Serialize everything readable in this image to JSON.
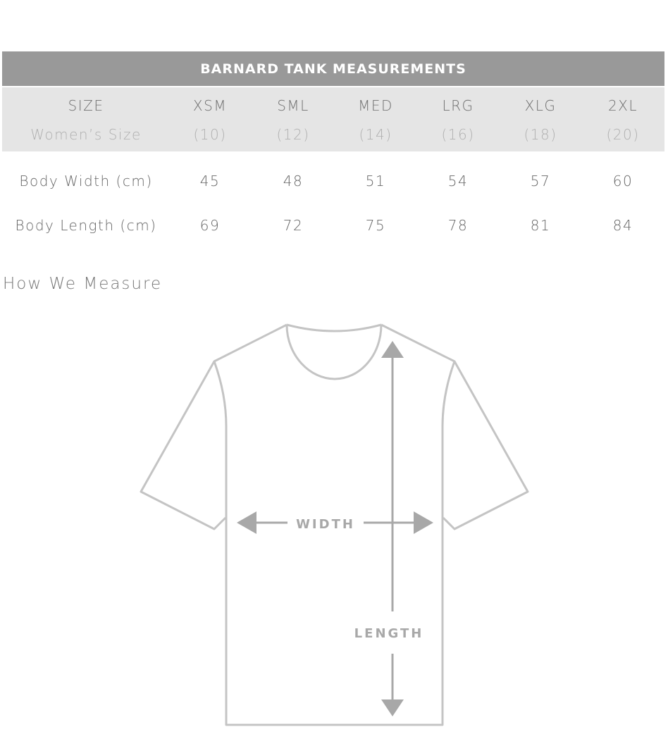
{
  "table": {
    "title": "BARNARD TANK MEASUREMENTS",
    "size_row": [
      "SIZE",
      "XSM",
      "SML",
      "MED",
      "LRG",
      "XLG",
      "2XL"
    ],
    "womens_row": [
      "Women’s Size",
      "(10)",
      "(12)",
      "(14)",
      "(16)",
      "(18)",
      "(20)"
    ],
    "rows": [
      {
        "label": "Body Width (cm)",
        "values": [
          "45",
          "48",
          "51",
          "54",
          "57",
          "60"
        ]
      },
      {
        "label": "Body Length (cm)",
        "values": [
          "69",
          "72",
          "75",
          "78",
          "81",
          "84"
        ]
      }
    ]
  },
  "diagram": {
    "title": "How We Measure",
    "width_label": "WIDTH",
    "length_label": "LENGTH",
    "colors": {
      "outline": "#c4c4c4",
      "arrow": "#a8a8a8",
      "header": "#999999",
      "band": "#e5e5e5"
    }
  }
}
